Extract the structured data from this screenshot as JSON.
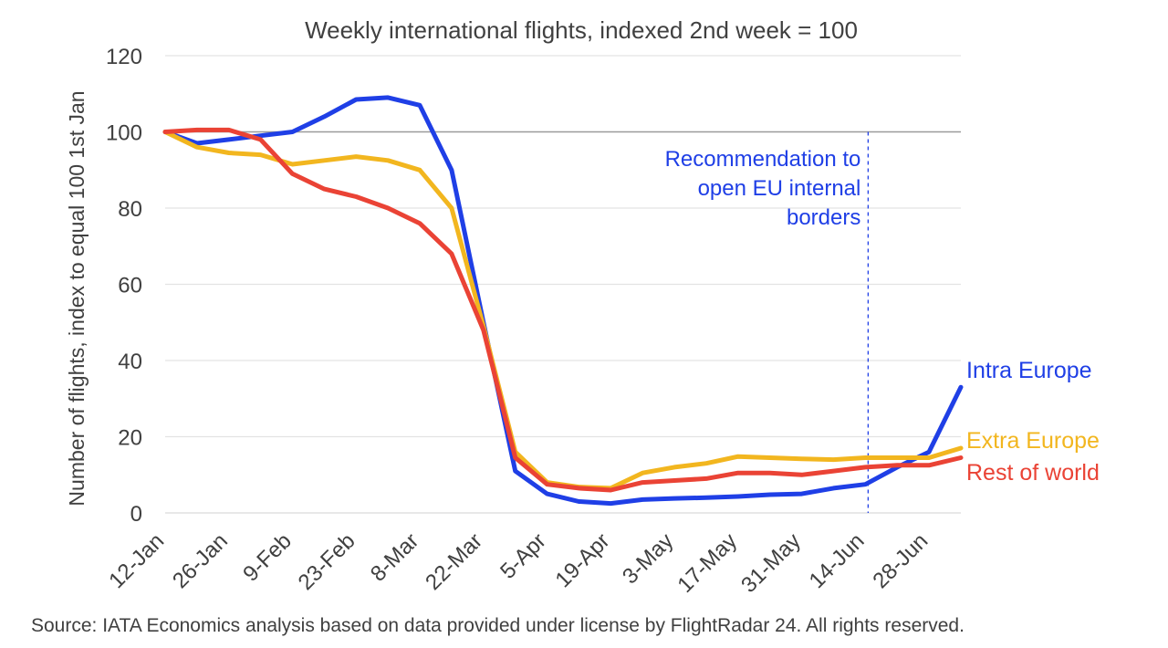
{
  "chart_data": {
    "type": "line",
    "title": "Weekly international flights, indexed 2nd week = 100",
    "ylabel": "Number of flights, index to equal 100 1st Jan",
    "xlabel": "",
    "ylim": [
      0,
      120
    ],
    "yticks": [
      0,
      20,
      40,
      60,
      80,
      100,
      120
    ],
    "x": [
      "12-Jan",
      "19-Jan",
      "26-Jan",
      "2-Feb",
      "9-Feb",
      "16-Feb",
      "23-Feb",
      "1-Mar",
      "8-Mar",
      "15-Mar",
      "22-Mar",
      "29-Mar",
      "5-Apr",
      "12-Apr",
      "19-Apr",
      "26-Apr",
      "3-May",
      "10-May",
      "17-May",
      "24-May",
      "31-May",
      "7-Jun",
      "14-Jun",
      "21-Jun",
      "28-Jun",
      "5-Jul"
    ],
    "xticks": [
      "12-Jan",
      "26-Jan",
      "9-Feb",
      "23-Feb",
      "8-Mar",
      "22-Mar",
      "5-Apr",
      "19-Apr",
      "3-May",
      "17-May",
      "31-May",
      "14-Jun",
      "28-Jun"
    ],
    "grid": true,
    "reference_line": 100,
    "series": [
      {
        "name": "Intra Europe",
        "color": "#1f3fe6",
        "values": [
          100,
          97,
          98,
          99,
          100,
          104,
          108.5,
          109,
          107,
          90,
          50,
          11,
          5,
          3,
          2.5,
          3.5,
          3.8,
          4,
          4.3,
          4.8,
          5,
          6.5,
          7.5,
          12,
          16,
          33
        ]
      },
      {
        "name": "Extra Europe",
        "color": "#f2b61f",
        "values": [
          100,
          96,
          94.5,
          94,
          91.5,
          92.5,
          93.5,
          92.5,
          90,
          80,
          49,
          16,
          8,
          6.8,
          6.5,
          10.5,
          12,
          13,
          14.8,
          14.5,
          14.2,
          14,
          14.5,
          14.5,
          14.5,
          17
        ]
      },
      {
        "name": "Rest of world",
        "color": "#ea4335",
        "values": [
          100,
          100.5,
          100.5,
          98,
          89,
          85,
          83,
          80,
          76,
          68,
          48,
          14.5,
          7.5,
          6.5,
          6,
          8,
          8.5,
          9,
          10.5,
          10.5,
          10,
          11,
          12,
          12.5,
          12.5,
          14.5
        ]
      }
    ],
    "annotation": {
      "text_lines": [
        "Recommendation to",
        "open EU internal",
        "borders"
      ],
      "x": "14-Jun",
      "color": "#1f3fe6"
    }
  },
  "source": "Source: IATA Economics analysis based on data provided under license by FlightRadar 24. All rights reserved."
}
